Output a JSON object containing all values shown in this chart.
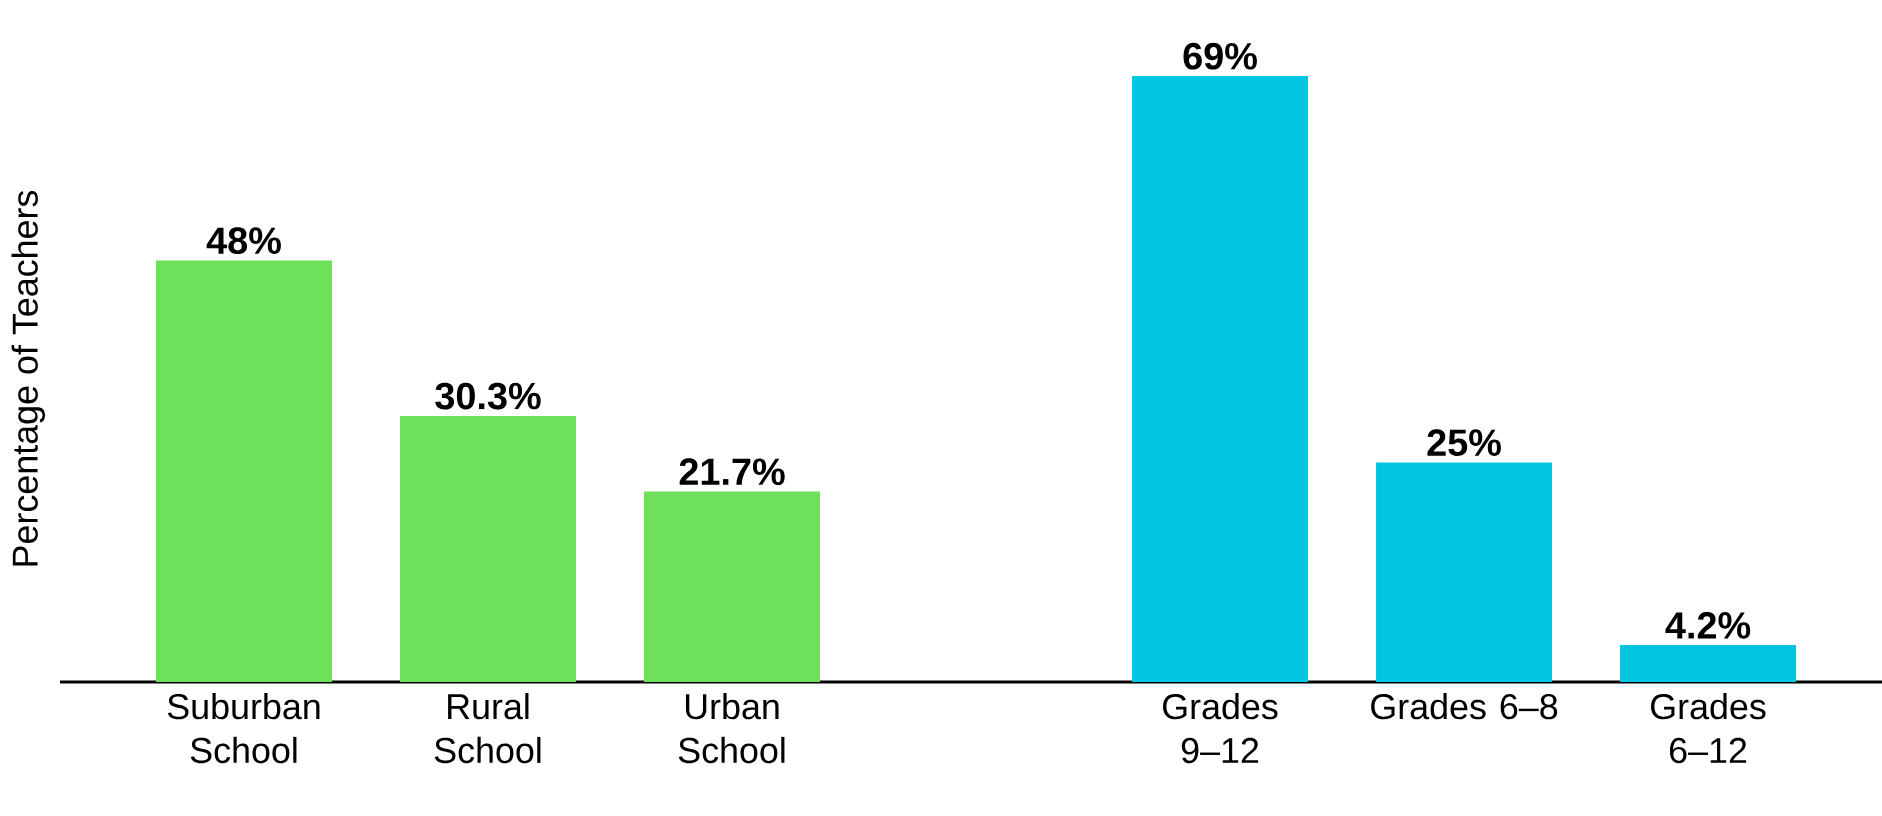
{
  "chart_data": [
    {
      "type": "bar",
      "ylabel": "Percentage of Teachers",
      "categories": [
        "Suburban School",
        "Rural School",
        "Urban School"
      ],
      "values": [
        48,
        30.3,
        21.7
      ],
      "color": "#6ee05a",
      "value_labels": [
        "48%",
        "30.3%",
        "21.7%"
      ],
      "tick_labels": "x"
    },
    {
      "type": "bar",
      "categories": [
        "Grades 9–12",
        "Grades 6–8",
        "Grades 6–12"
      ],
      "values": [
        69,
        25,
        4.2
      ],
      "color": "#00c6e0",
      "value_labels": [
        "69%",
        "25%",
        "4.2%"
      ],
      "tick_labels": "x"
    }
  ]
}
